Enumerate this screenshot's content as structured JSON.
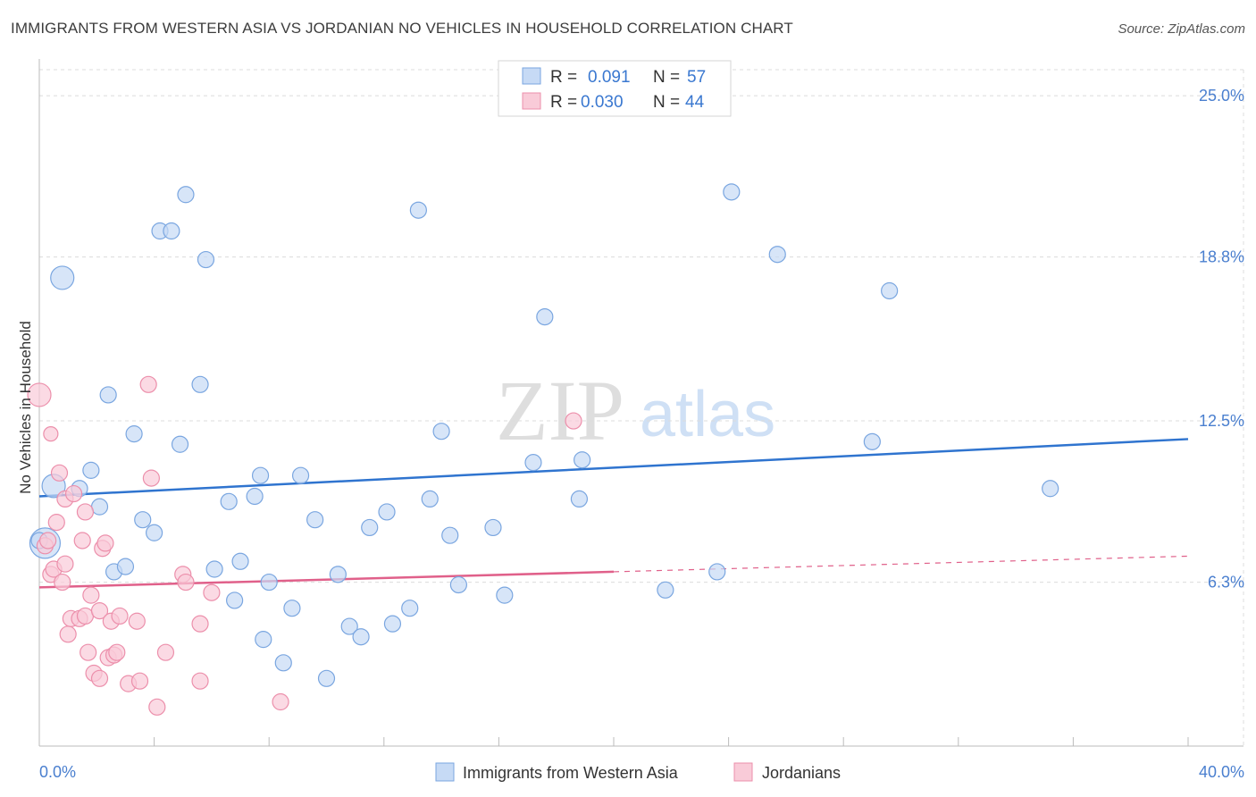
{
  "header": {
    "title": "IMMIGRANTS FROM WESTERN ASIA VS JORDANIAN NO VEHICLES IN HOUSEHOLD CORRELATION CHART",
    "source": "Source: ZipAtlas.com"
  },
  "watermark": {
    "zip": "ZIP",
    "atlas": "atlas"
  },
  "stats_legend": {
    "rows": [
      {
        "r_label": "R =",
        "r_value": "0.091",
        "n_label": "N =",
        "n_value": "57",
        "color": "#a9c8f0"
      },
      {
        "r_label": "R =",
        "r_value": "0.030",
        "n_label": "N =",
        "n_value": "44",
        "color": "#f7b8cc"
      }
    ]
  },
  "colors": {
    "blue_fill": "#c6daf5",
    "blue_stroke": "#7aa6e0",
    "blue_line": "#2f74cf",
    "pink_fill": "#f9cbd8",
    "pink_stroke": "#ec8fab",
    "pink_line": "#e0608a",
    "axis_text": "#4a7fcf",
    "grid": "#dcdcdc"
  },
  "chart_data": {
    "type": "scatter",
    "title": "IMMIGRANTS FROM WESTERN ASIA VS JORDANIAN NO VEHICLES IN HOUSEHOLD CORRELATION CHART",
    "xlabel": "",
    "ylabel": "No Vehicles in Household",
    "xlim": [
      0,
      40
    ],
    "ylim": [
      0,
      26
    ],
    "x_tick_labels": [
      {
        "value": 0,
        "label": "0.0%"
      },
      {
        "value": 40,
        "label": "40.0%"
      }
    ],
    "y_tick_labels": [
      {
        "value": 6.3,
        "label": "6.3%"
      },
      {
        "value": 12.5,
        "label": "12.5%"
      },
      {
        "value": 18.8,
        "label": "18.8%"
      },
      {
        "value": 25.0,
        "label": "25.0%"
      }
    ],
    "grid": true,
    "legend_position": "bottom",
    "series": [
      {
        "name": "Immigrants from Western Asia",
        "color": "#7aa6e0",
        "r": 0.091,
        "n": 57,
        "trend": {
          "x0": 0,
          "y0": 9.6,
          "x1": 40,
          "y1": 11.8,
          "dashed_from": null
        },
        "points": [
          [
            0.2,
            7.8
          ],
          [
            0.5,
            10.0
          ],
          [
            0.8,
            18.0
          ],
          [
            1.4,
            9.9
          ],
          [
            1.8,
            10.6
          ],
          [
            2.1,
            9.2
          ],
          [
            2.4,
            13.5
          ],
          [
            2.6,
            6.7
          ],
          [
            3.0,
            6.9
          ],
          [
            3.3,
            12.0
          ],
          [
            3.6,
            8.7
          ],
          [
            4.0,
            8.2
          ],
          [
            4.2,
            19.8
          ],
          [
            4.6,
            19.8
          ],
          [
            4.9,
            11.6
          ],
          [
            5.1,
            21.2
          ],
          [
            5.6,
            13.9
          ],
          [
            5.8,
            18.7
          ],
          [
            6.1,
            6.8
          ],
          [
            6.6,
            9.4
          ],
          [
            6.8,
            5.6
          ],
          [
            7.0,
            7.1
          ],
          [
            7.5,
            9.6
          ],
          [
            7.7,
            10.4
          ],
          [
            8.0,
            6.3
          ],
          [
            7.8,
            4.1
          ],
          [
            8.5,
            3.2
          ],
          [
            8.8,
            5.3
          ],
          [
            9.1,
            10.4
          ],
          [
            9.6,
            8.7
          ],
          [
            10.0,
            2.6
          ],
          [
            10.4,
            6.6
          ],
          [
            10.8,
            4.6
          ],
          [
            11.2,
            4.2
          ],
          [
            11.5,
            8.4
          ],
          [
            12.1,
            9.0
          ],
          [
            12.3,
            4.7
          ],
          [
            12.9,
            5.3
          ],
          [
            13.2,
            20.6
          ],
          [
            13.6,
            9.5
          ],
          [
            14.0,
            12.1
          ],
          [
            14.3,
            8.1
          ],
          [
            14.6,
            6.2
          ],
          [
            15.8,
            8.4
          ],
          [
            16.2,
            5.8
          ],
          [
            17.2,
            10.9
          ],
          [
            17.6,
            16.5
          ],
          [
            18.8,
            9.5
          ],
          [
            18.9,
            11.0
          ],
          [
            21.8,
            6.0
          ],
          [
            23.6,
            6.7
          ],
          [
            24.1,
            21.3
          ],
          [
            25.7,
            18.9
          ],
          [
            29.6,
            17.5
          ],
          [
            29.0,
            11.7
          ],
          [
            35.2,
            9.9
          ],
          [
            0.0,
            7.9
          ]
        ],
        "sizes": [
          "lg",
          "md",
          "md",
          "sm",
          "sm",
          "sm",
          "sm",
          "sm",
          "sm",
          "sm",
          "sm",
          "sm",
          "sm",
          "sm",
          "sm",
          "sm",
          "sm",
          "sm",
          "sm",
          "sm",
          "sm",
          "sm",
          "sm",
          "sm",
          "sm",
          "sm",
          "sm",
          "sm",
          "sm",
          "sm",
          "sm",
          "sm",
          "sm",
          "sm",
          "sm",
          "sm",
          "sm",
          "sm",
          "sm",
          "sm",
          "sm",
          "sm",
          "sm",
          "sm",
          "sm",
          "sm",
          "sm",
          "sm",
          "sm",
          "sm",
          "sm",
          "sm",
          "sm",
          "sm",
          "sm",
          "sm",
          "sm"
        ]
      },
      {
        "name": "Jordanians",
        "color": "#ec8fab",
        "r": 0.03,
        "n": 44,
        "trend": {
          "x0": 0,
          "y0": 6.1,
          "x1": 40,
          "y1": 7.3,
          "dashed_from": 20
        },
        "points": [
          [
            0.0,
            13.5
          ],
          [
            0.2,
            7.7
          ],
          [
            0.3,
            7.9
          ],
          [
            0.4,
            6.6
          ],
          [
            0.5,
            6.8
          ],
          [
            0.6,
            8.6
          ],
          [
            0.7,
            10.5
          ],
          [
            0.8,
            6.3
          ],
          [
            0.9,
            7.0
          ],
          [
            0.9,
            9.5
          ],
          [
            1.0,
            4.3
          ],
          [
            1.1,
            4.9
          ],
          [
            1.2,
            9.7
          ],
          [
            1.4,
            4.9
          ],
          [
            1.5,
            7.9
          ],
          [
            1.6,
            5.0
          ],
          [
            1.6,
            9.0
          ],
          [
            1.7,
            3.6
          ],
          [
            1.8,
            5.8
          ],
          [
            1.9,
            2.8
          ],
          [
            2.1,
            5.2
          ],
          [
            2.1,
            2.6
          ],
          [
            2.2,
            7.6
          ],
          [
            2.3,
            7.8
          ],
          [
            2.4,
            3.4
          ],
          [
            2.5,
            4.8
          ],
          [
            2.6,
            3.5
          ],
          [
            2.7,
            3.6
          ],
          [
            2.8,
            5.0
          ],
          [
            3.1,
            2.4
          ],
          [
            3.4,
            4.8
          ],
          [
            3.5,
            2.5
          ],
          [
            3.8,
            13.9
          ],
          [
            3.9,
            10.3
          ],
          [
            4.1,
            1.5
          ],
          [
            4.4,
            3.6
          ],
          [
            5.0,
            6.6
          ],
          [
            5.1,
            6.3
          ],
          [
            5.6,
            2.5
          ],
          [
            5.6,
            4.7
          ],
          [
            6.0,
            5.9
          ],
          [
            8.4,
            1.7
          ],
          [
            18.6,
            12.5
          ],
          [
            0.4,
            12.0
          ]
        ],
        "sizes": [
          "md",
          "sm",
          "sm",
          "sm",
          "sm",
          "sm",
          "sm",
          "sm",
          "sm",
          "sm",
          "sm",
          "sm",
          "sm",
          "sm",
          "sm",
          "sm",
          "sm",
          "sm",
          "sm",
          "sm",
          "sm",
          "sm",
          "sm",
          "sm",
          "sm",
          "sm",
          "sm",
          "sm",
          "sm",
          "sm",
          "sm",
          "sm",
          "sm",
          "sm",
          "sm",
          "sm",
          "sm",
          "sm",
          "sm",
          "sm",
          "sm",
          "sm",
          "sm",
          "xs"
        ]
      }
    ]
  }
}
